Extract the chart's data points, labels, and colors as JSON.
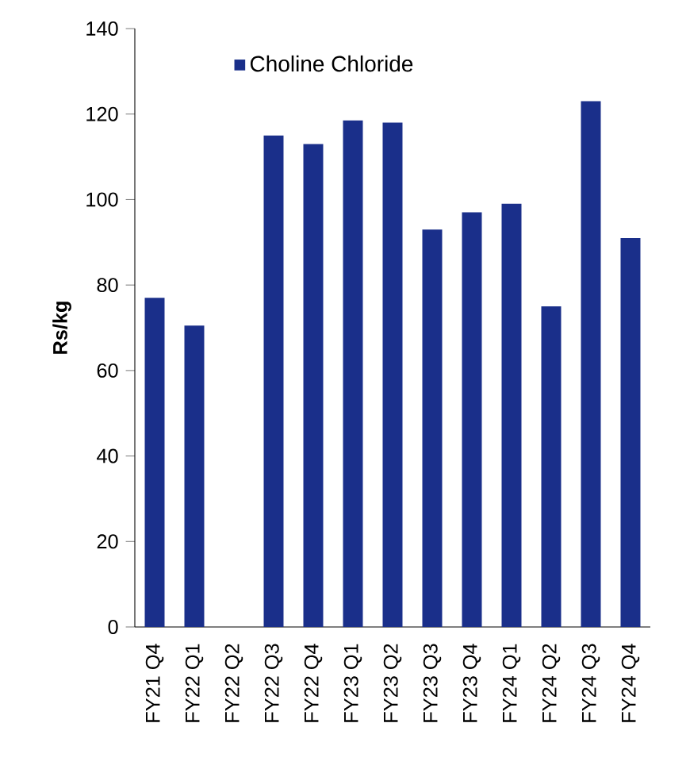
{
  "chart_data": {
    "type": "bar",
    "ylabel": "Rs/kg",
    "categories": [
      "FY21 Q4",
      "FY22 Q1",
      "FY22 Q2",
      "FY22 Q3",
      "FY22 Q4",
      "FY23 Q1",
      "FY23 Q2",
      "FY23 Q3",
      "FY23 Q4",
      "FY24 Q1",
      "FY24 Q2",
      "FY24 Q3",
      "FY24 Q4"
    ],
    "series": [
      {
        "name": "Choline Chloride",
        "color": "#1a2f8a",
        "values": [
          77,
          70.5,
          null,
          115,
          113,
          118.5,
          118,
          93,
          97,
          99,
          75,
          123,
          91
        ]
      }
    ],
    "ylim": [
      0,
      140
    ],
    "yticks": [
      0,
      20,
      40,
      60,
      80,
      100,
      120,
      140
    ],
    "grid": false,
    "legend": "top"
  }
}
